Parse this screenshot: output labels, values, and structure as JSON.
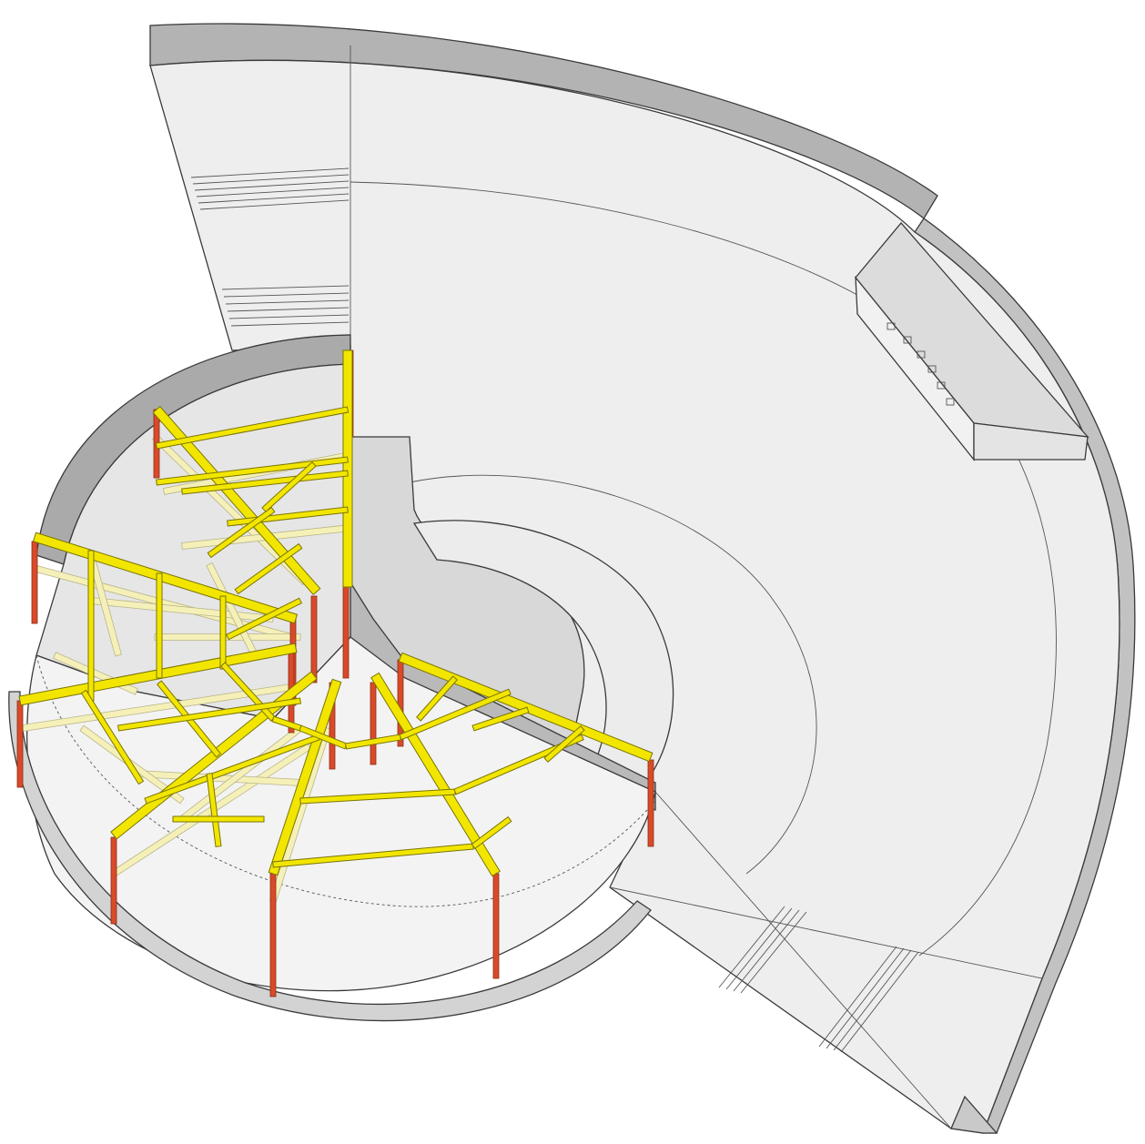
{
  "diagram": {
    "subject": "",
    "colors": {
      "background": "#ffffff",
      "surface_light": "#efefef",
      "surface_top": "#f4f4f4",
      "surface_mid": "#e2e2e2",
      "wall_dark": "#b3b3b3",
      "wall_mid": "#c9c9c9",
      "line": "#3a3a3a",
      "beam_yellow": "#f2e600",
      "beam_ghost": "#f4f0b8",
      "column_red": "#d94a2a"
    }
  }
}
